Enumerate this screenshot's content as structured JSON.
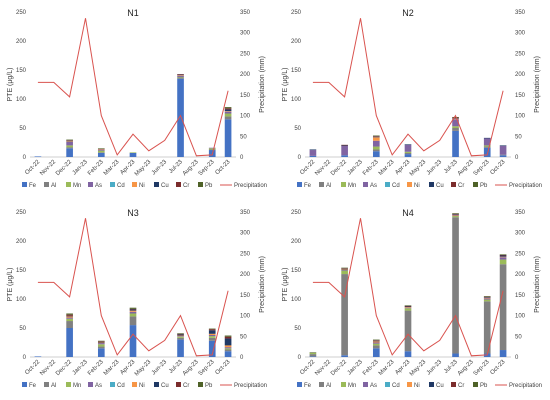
{
  "months": [
    "Oct-22",
    "Nov-22",
    "Dec-22",
    "Jan-23",
    "Feb-23",
    "Mar-23",
    "Apr-23",
    "May-23",
    "Jun-23",
    "Jul-23",
    "Aug-23",
    "Sep-23",
    "Oct-23"
  ],
  "y_left_label": "PTE (μg/L)",
  "y_right_label": "Precipitation (mm)",
  "colors": {
    "Fe": "#4472c4",
    "Al": "#808080",
    "Mn": "#9bbb59",
    "As": "#8064a2",
    "Cd": "#4bacc6",
    "Ni": "#f79646",
    "Cu": "#1f3864",
    "Cr": "#7b2c2c",
    "Pb": "#4f6228",
    "Precipitation": "#d9534f"
  },
  "legend": [
    "Fe",
    "Al",
    "Mn",
    "As",
    "Cd",
    "Ni",
    "Cu",
    "Cr",
    "Pb",
    "Precipitation"
  ],
  "chart_data": [
    {
      "type": "bar",
      "title": "N1",
      "ylim": [
        0,
        250
      ],
      "y2lim": [
        0,
        350
      ],
      "precipitation": [
        180,
        180,
        145,
        335,
        100,
        5,
        55,
        15,
        40,
        100,
        3,
        5,
        160
      ],
      "series": [
        {
          "name": "Fe",
          "values": [
            1,
            0,
            15,
            0,
            7,
            0,
            7,
            0,
            0,
            135,
            0,
            12,
            65
          ]
        },
        {
          "name": "Al",
          "values": [
            0,
            0,
            2,
            0,
            1,
            0,
            0,
            0,
            0,
            2,
            0,
            1,
            5
          ]
        },
        {
          "name": "Mn",
          "values": [
            0,
            0,
            3,
            0,
            3,
            0,
            1,
            0,
            0,
            1,
            0,
            2,
            5
          ]
        },
        {
          "name": "As",
          "values": [
            0,
            0,
            6,
            0,
            2,
            0,
            0,
            0,
            0,
            2,
            0,
            1,
            3
          ]
        },
        {
          "name": "Cd",
          "values": [
            0,
            0,
            0,
            0,
            0,
            0,
            0,
            0,
            0,
            0,
            0,
            0,
            0
          ]
        },
        {
          "name": "Ni",
          "values": [
            0,
            0,
            1,
            0,
            1,
            0,
            0,
            0,
            0,
            1,
            0,
            0,
            1
          ]
        },
        {
          "name": "Cu",
          "values": [
            0,
            0,
            1,
            0,
            0,
            0,
            0,
            0,
            0,
            1,
            0,
            0,
            3
          ]
        },
        {
          "name": "Cr",
          "values": [
            0,
            0,
            1,
            0,
            0,
            0,
            0,
            0,
            0,
            1,
            0,
            0,
            2
          ]
        },
        {
          "name": "Pb",
          "values": [
            0,
            0,
            1,
            0,
            1,
            0,
            0,
            0,
            0,
            0,
            0,
            0,
            2
          ]
        }
      ]
    },
    {
      "type": "bar",
      "title": "N2",
      "ylim": [
        0,
        250
      ],
      "y2lim": [
        0,
        350
      ],
      "precipitation": [
        180,
        180,
        145,
        335,
        100,
        5,
        55,
        15,
        40,
        100,
        3,
        5,
        160
      ],
      "series": [
        {
          "name": "Fe",
          "values": [
            2,
            0,
            3,
            0,
            10,
            0,
            5,
            0,
            0,
            45,
            0,
            16,
            3
          ]
        },
        {
          "name": "Al",
          "values": [
            0,
            0,
            0,
            0,
            3,
            0,
            2,
            0,
            0,
            5,
            0,
            2,
            1
          ]
        },
        {
          "name": "Mn",
          "values": [
            0,
            0,
            0,
            0,
            5,
            0,
            2,
            0,
            0,
            3,
            0,
            2,
            0
          ]
        },
        {
          "name": "As",
          "values": [
            10,
            0,
            16,
            0,
            10,
            0,
            12,
            0,
            0,
            12,
            0,
            12,
            15
          ]
        },
        {
          "name": "Cd",
          "values": [
            0,
            0,
            0,
            0,
            0,
            0,
            0,
            0,
            0,
            0,
            0,
            0,
            0
          ]
        },
        {
          "name": "Ni",
          "values": [
            0,
            0,
            0,
            0,
            6,
            0,
            0,
            0,
            0,
            1,
            0,
            0,
            0
          ]
        },
        {
          "name": "Cu",
          "values": [
            1,
            0,
            1,
            0,
            1,
            0,
            1,
            0,
            0,
            1,
            0,
            1,
            1
          ]
        },
        {
          "name": "Cr",
          "values": [
            0,
            0,
            1,
            0,
            1,
            0,
            0,
            0,
            0,
            1,
            0,
            0,
            0
          ]
        },
        {
          "name": "Pb",
          "values": [
            0,
            0,
            0,
            0,
            1,
            0,
            0,
            0,
            0,
            1,
            0,
            0,
            0
          ]
        }
      ]
    },
    {
      "type": "bar",
      "title": "N3",
      "ylim": [
        0,
        250
      ],
      "y2lim": [
        0,
        350
      ],
      "precipitation": [
        180,
        180,
        145,
        335,
        100,
        5,
        55,
        15,
        40,
        100,
        3,
        5,
        160
      ],
      "series": [
        {
          "name": "Fe",
          "values": [
            1,
            0,
            50,
            0,
            15,
            0,
            55,
            0,
            0,
            30,
            0,
            28,
            10
          ]
        },
        {
          "name": "Al",
          "values": [
            0,
            0,
            12,
            0,
            3,
            0,
            15,
            0,
            0,
            3,
            0,
            5,
            3
          ]
        },
        {
          "name": "Mn",
          "values": [
            0,
            0,
            4,
            0,
            4,
            0,
            5,
            0,
            0,
            2,
            0,
            3,
            2
          ]
        },
        {
          "name": "As",
          "values": [
            0,
            0,
            2,
            0,
            2,
            0,
            3,
            0,
            0,
            1,
            0,
            2,
            2
          ]
        },
        {
          "name": "Cd",
          "values": [
            0,
            0,
            0,
            0,
            0,
            0,
            0,
            0,
            0,
            0,
            0,
            0,
            0
          ]
        },
        {
          "name": "Ni",
          "values": [
            0,
            0,
            2,
            0,
            1,
            0,
            2,
            0,
            0,
            1,
            0,
            2,
            3
          ]
        },
        {
          "name": "Cu",
          "values": [
            0,
            0,
            1,
            0,
            1,
            0,
            2,
            0,
            0,
            2,
            0,
            6,
            12
          ]
        },
        {
          "name": "Cr",
          "values": [
            0,
            0,
            2,
            0,
            1,
            0,
            1,
            0,
            0,
            1,
            0,
            2,
            3
          ]
        },
        {
          "name": "Pb",
          "values": [
            0,
            0,
            2,
            0,
            1,
            0,
            2,
            0,
            0,
            1,
            0,
            1,
            2
          ]
        }
      ]
    },
    {
      "type": "bar",
      "title": "N4",
      "ylim": [
        0,
        250
      ],
      "y2lim": [
        0,
        350
      ],
      "precipitation": [
        180,
        180,
        145,
        335,
        100,
        5,
        55,
        15,
        40,
        100,
        3,
        5,
        160
      ],
      "series": [
        {
          "name": "Fe",
          "values": [
            1,
            0,
            3,
            0,
            15,
            0,
            10,
            0,
            0,
            6,
            0,
            6,
            12
          ]
        },
        {
          "name": "Al",
          "values": [
            4,
            0,
            140,
            0,
            5,
            0,
            70,
            0,
            0,
            235,
            0,
            90,
            148
          ]
        },
        {
          "name": "Mn",
          "values": [
            2,
            0,
            6,
            0,
            3,
            0,
            4,
            0,
            0,
            2,
            0,
            3,
            8
          ]
        },
        {
          "name": "As",
          "values": [
            0,
            0,
            1,
            0,
            2,
            0,
            1,
            0,
            0,
            1,
            0,
            2,
            4
          ]
        },
        {
          "name": "Cd",
          "values": [
            0,
            0,
            0,
            0,
            0,
            0,
            0,
            0,
            0,
            0,
            0,
            0,
            0
          ]
        },
        {
          "name": "Ni",
          "values": [
            0,
            0,
            1,
            0,
            2,
            0,
            1,
            0,
            0,
            1,
            0,
            1,
            1
          ]
        },
        {
          "name": "Cu",
          "values": [
            0,
            0,
            1,
            0,
            1,
            0,
            1,
            0,
            0,
            1,
            0,
            1,
            2
          ]
        },
        {
          "name": "Cr",
          "values": [
            0,
            0,
            1,
            0,
            1,
            0,
            1,
            0,
            0,
            1,
            0,
            1,
            1
          ]
        },
        {
          "name": "Pb",
          "values": [
            1,
            0,
            1,
            0,
            1,
            0,
            1,
            0,
            0,
            1,
            0,
            1,
            1
          ]
        }
      ]
    }
  ]
}
